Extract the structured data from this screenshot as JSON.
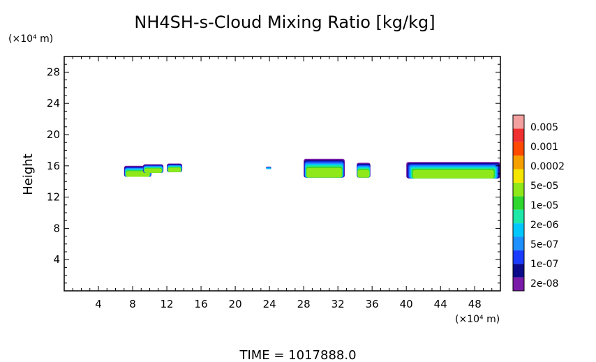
{
  "chart_data": {
    "type": "heatmap",
    "title": "NH4SH-s-Cloud Mixing Ratio [kg/kg]",
    "ylabel": "Height",
    "y_unit": "(×10⁴ m)",
    "x_unit": "(×10⁴ m)",
    "xlim": [
      0,
      51
    ],
    "ylim": [
      0,
      30
    ],
    "xticks": [
      4,
      8,
      12,
      16,
      20,
      24,
      28,
      32,
      36,
      40,
      44,
      48
    ],
    "yticks": [
      4,
      8,
      12,
      16,
      20,
      24,
      28
    ],
    "colorbar": {
      "levels": [
        "0.005",
        "0.001",
        "0.0002",
        "5e-05",
        "1e-05",
        "2e-06",
        "5e-07",
        "1e-07",
        "2e-08"
      ],
      "colors": [
        "#7a1aa8",
        "#0a0a8a",
        "#1a3cff",
        "#1e90ff",
        "#00c8ff",
        "#1ee8a8",
        "#2ed62e",
        "#8ee81a",
        "#f5e600",
        "#f5a000",
        "#ff4a00",
        "#f03030",
        "#f4a0a0"
      ]
    },
    "cloud_clusters": [
      {
        "x_range": [
          7.0,
          10.2
        ],
        "z_range": [
          14.6,
          16.0
        ]
      },
      {
        "x_range": [
          9.2,
          11.6
        ],
        "z_range": [
          15.1,
          16.2
        ]
      },
      {
        "x_range": [
          12.0,
          13.8
        ],
        "z_range": [
          15.2,
          16.3
        ]
      },
      {
        "x_range": [
          23.6,
          24.2
        ],
        "z_range": [
          15.6,
          15.9
        ]
      },
      {
        "x_range": [
          28.0,
          32.8
        ],
        "z_range": [
          14.5,
          16.9
        ]
      },
      {
        "x_range": [
          34.2,
          35.8
        ],
        "z_range": [
          14.5,
          16.4
        ]
      },
      {
        "x_range": [
          40.0,
          51.0
        ],
        "z_range": [
          14.4,
          16.5
        ]
      }
    ]
  },
  "footer": {
    "time_label": "TIME = 1017888.0"
  }
}
